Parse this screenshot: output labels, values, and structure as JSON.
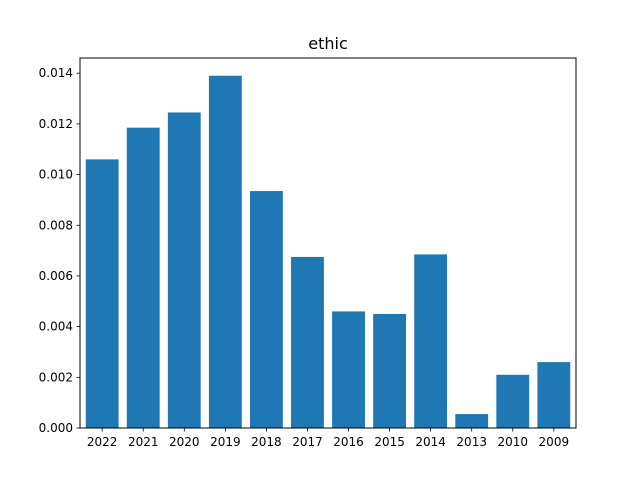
{
  "chart_data": {
    "type": "bar",
    "title": "ethic",
    "xlabel": "",
    "ylabel": "",
    "categories": [
      "2022",
      "2021",
      "2020",
      "2019",
      "2018",
      "2017",
      "2016",
      "2015",
      "2014",
      "2013",
      "2010",
      "2009"
    ],
    "values": [
      0.0106,
      0.01185,
      0.01245,
      0.0139,
      0.00935,
      0.00675,
      0.0046,
      0.0045,
      0.00685,
      0.00055,
      0.0021,
      0.0026
    ],
    "ylim": [
      0,
      0.0146
    ],
    "yticks": [
      "0.000",
      "0.002",
      "0.004",
      "0.006",
      "0.008",
      "0.010",
      "0.012",
      "0.014"
    ],
    "grid": false,
    "legend": "none",
    "bar_color": "#1f77b4"
  }
}
